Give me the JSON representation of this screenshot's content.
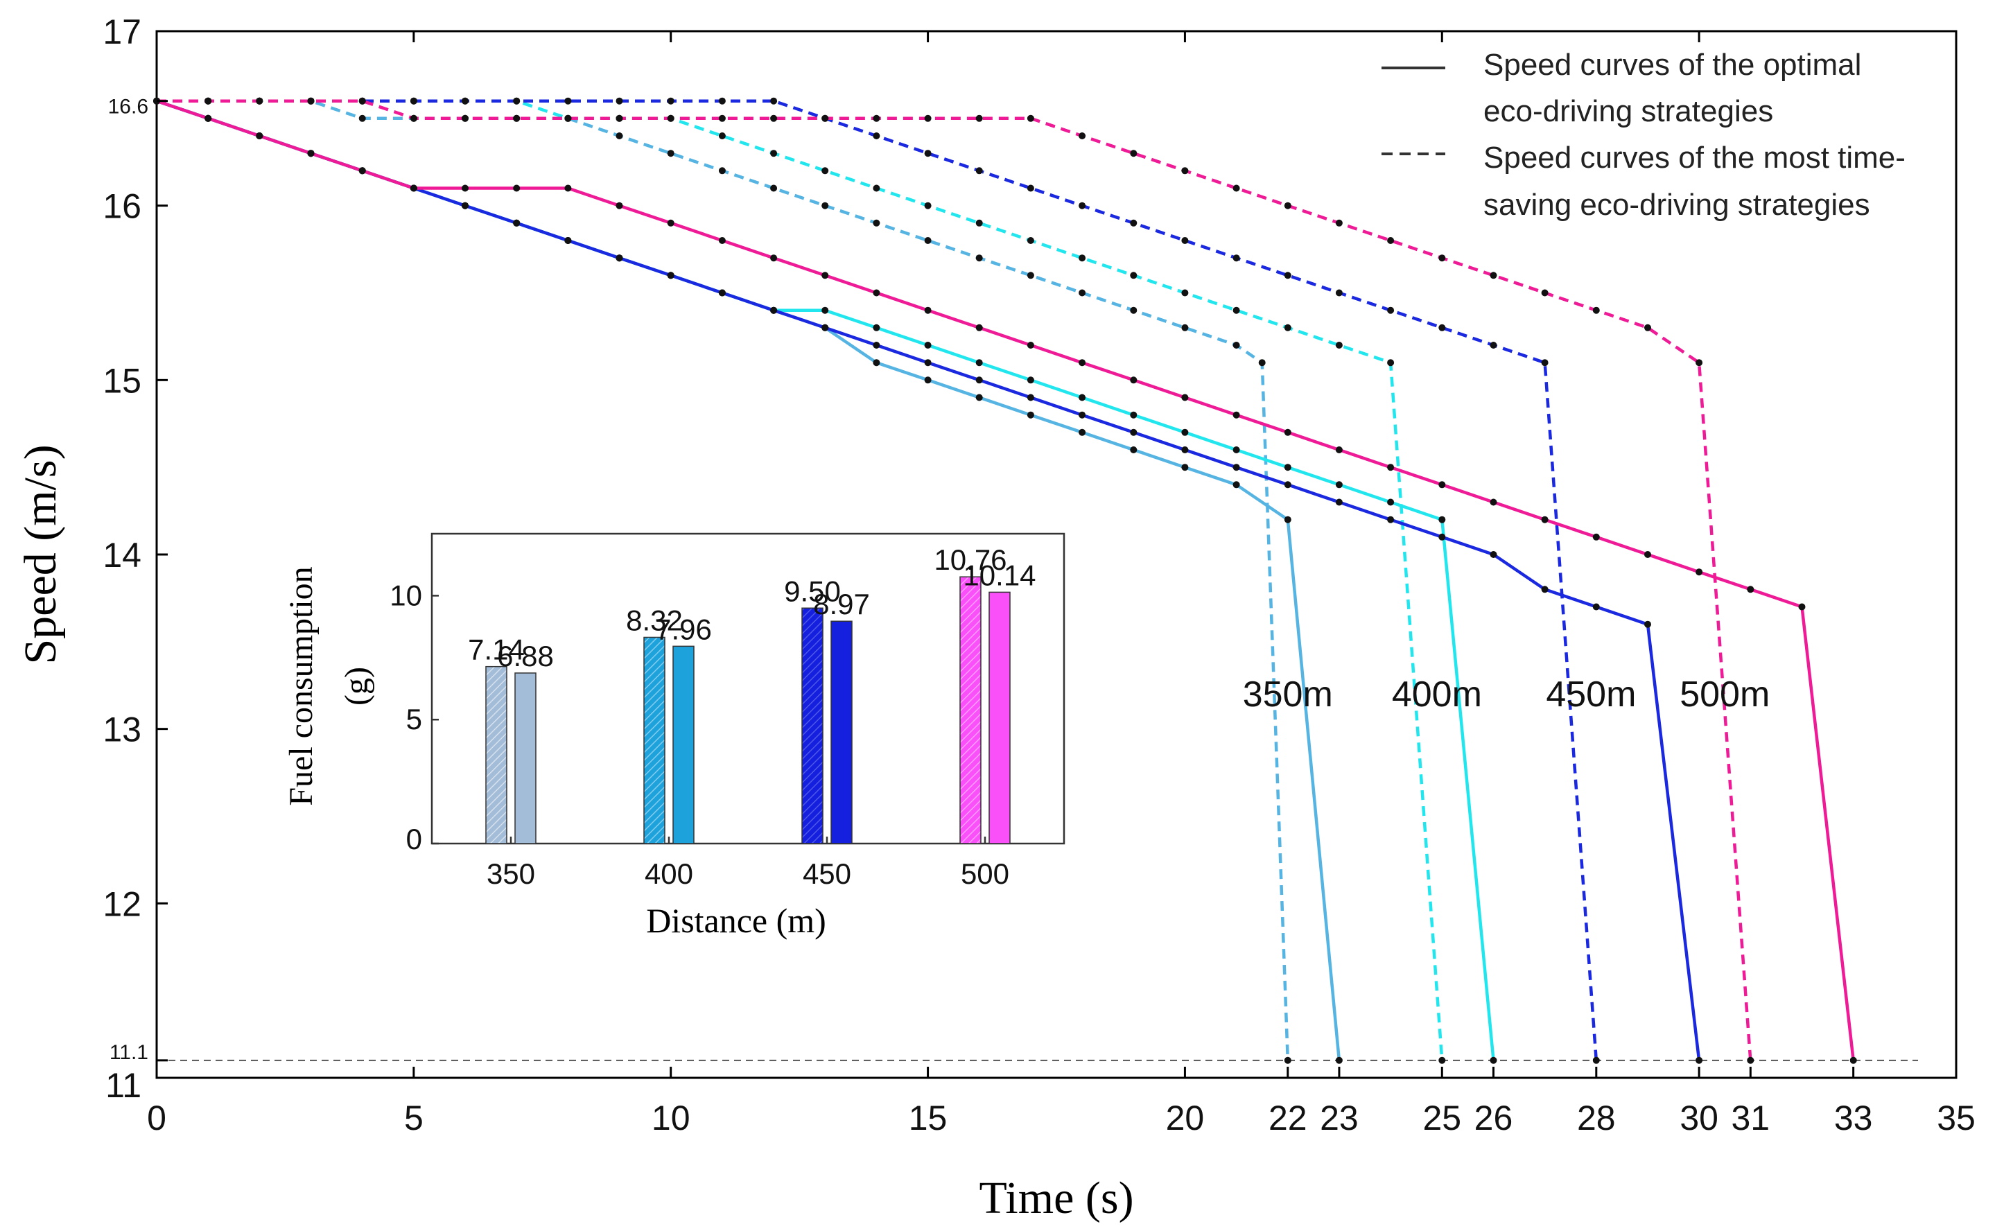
{
  "chart_data": {
    "main": {
      "type": "line",
      "xlabel": "Time (s)",
      "ylabel": "Speed (m/s)",
      "xlim": [
        0,
        35
      ],
      "ylim": [
        11,
        17
      ],
      "xticks": [
        {
          "v": 0,
          "label": "0"
        },
        {
          "v": 5,
          "label": "5"
        },
        {
          "v": 10,
          "label": "10"
        },
        {
          "v": 15,
          "label": "15"
        },
        {
          "v": 20,
          "label": "20"
        },
        {
          "v": 22,
          "label": "22"
        },
        {
          "v": 23,
          "label": "23"
        },
        {
          "v": 25,
          "label": "25"
        },
        {
          "v": 26,
          "label": "26"
        },
        {
          "v": 28,
          "label": "28"
        },
        {
          "v": 30,
          "label": "30"
        },
        {
          "v": 31,
          "label": "31"
        },
        {
          "v": 33,
          "label": "33"
        },
        {
          "v": 35,
          "label": "35"
        }
      ],
      "yticks": [
        {
          "v": 11,
          "label": "11"
        },
        {
          "v": 11.1,
          "label": "11.1"
        },
        {
          "v": 12,
          "label": "12"
        },
        {
          "v": 13,
          "label": "13"
        },
        {
          "v": 14,
          "label": "14"
        },
        {
          "v": 15,
          "label": "15"
        },
        {
          "v": 16,
          "label": "16"
        },
        {
          "v": 16.6,
          "label": "16.6"
        },
        {
          "v": 17,
          "label": "17"
        }
      ],
      "reference_line": {
        "y": 11.1,
        "style": "dashed",
        "color": "#555555"
      },
      "legend": {
        "position": "top-right",
        "entries": [
          {
            "style": "solid",
            "lines": [
              "Speed curves of the optimal",
              "eco-driving strategies"
            ]
          },
          {
            "style": "dashed",
            "lines": [
              "Speed curves of the most time-",
              "saving  eco-driving strategies"
            ]
          }
        ]
      },
      "distance_labels": [
        {
          "text": "350m",
          "x": 22.0,
          "y": 13.13
        },
        {
          "text": "400m",
          "x": 24.9,
          "y": 13.13
        },
        {
          "text": "450m",
          "x": 27.9,
          "y": 13.13
        },
        {
          "text": "500m",
          "x": 30.5,
          "y": 13.13
        }
      ],
      "series": [
        {
          "name": "350m optimal",
          "style": "solid",
          "color": "#56b4e3",
          "points": [
            [
              0,
              16.6
            ],
            [
              1,
              16.5
            ],
            [
              2,
              16.4
            ],
            [
              3,
              16.3
            ],
            [
              4,
              16.2
            ],
            [
              5,
              16.1
            ],
            [
              6,
              16.0
            ],
            [
              7,
              15.9
            ],
            [
              8,
              15.8
            ],
            [
              9,
              15.7
            ],
            [
              10,
              15.6
            ],
            [
              11,
              15.5
            ],
            [
              12,
              15.4
            ],
            [
              13,
              15.3
            ],
            [
              14,
              15.1
            ],
            [
              15,
              15.0
            ],
            [
              16,
              14.9
            ],
            [
              17,
              14.8
            ],
            [
              18,
              14.7
            ],
            [
              19,
              14.6
            ],
            [
              20,
              14.5
            ],
            [
              21,
              14.4
            ],
            [
              22,
              14.2
            ],
            [
              23,
              11.1
            ]
          ]
        },
        {
          "name": "400m optimal",
          "style": "solid",
          "color": "#22e6ee",
          "points": [
            [
              0,
              16.6
            ],
            [
              1,
              16.5
            ],
            [
              2,
              16.4
            ],
            [
              3,
              16.3
            ],
            [
              4,
              16.2
            ],
            [
              5,
              16.1
            ],
            [
              6,
              16.0
            ],
            [
              7,
              15.9
            ],
            [
              8,
              15.8
            ],
            [
              9,
              15.7
            ],
            [
              10,
              15.6
            ],
            [
              11,
              15.5
            ],
            [
              12,
              15.4
            ],
            [
              13,
              15.4
            ],
            [
              14,
              15.3
            ],
            [
              15,
              15.2
            ],
            [
              16,
              15.1
            ],
            [
              17,
              15.0
            ],
            [
              18,
              14.9
            ],
            [
              19,
              14.8
            ],
            [
              20,
              14.7
            ],
            [
              21,
              14.6
            ],
            [
              22,
              14.5
            ],
            [
              23,
              14.4
            ],
            [
              24,
              14.3
            ],
            [
              25,
              14.2
            ],
            [
              26,
              11.1
            ]
          ]
        },
        {
          "name": "450m optimal",
          "style": "solid",
          "color": "#1a28e0",
          "points": [
            [
              0,
              16.6
            ],
            [
              1,
              16.5
            ],
            [
              2,
              16.4
            ],
            [
              3,
              16.3
            ],
            [
              4,
              16.2
            ],
            [
              5,
              16.1
            ],
            [
              6,
              16.0
            ],
            [
              7,
              15.9
            ],
            [
              8,
              15.8
            ],
            [
              9,
              15.7
            ],
            [
              10,
              15.6
            ],
            [
              11,
              15.5
            ],
            [
              12,
              15.4
            ],
            [
              13,
              15.3
            ],
            [
              14,
              15.2
            ],
            [
              15,
              15.1
            ],
            [
              16,
              15.0
            ],
            [
              17,
              14.9
            ],
            [
              18,
              14.8
            ],
            [
              19,
              14.7
            ],
            [
              20,
              14.6
            ],
            [
              21,
              14.5
            ],
            [
              22,
              14.4
            ],
            [
              23,
              14.3
            ],
            [
              24,
              14.2
            ],
            [
              25,
              14.1
            ],
            [
              26,
              14.0
            ],
            [
              27,
              13.8
            ],
            [
              28,
              13.7
            ],
            [
              29,
              13.6
            ],
            [
              30,
              11.1
            ]
          ]
        },
        {
          "name": "500m optimal",
          "style": "solid",
          "color": "#ee1a96",
          "points": [
            [
              0,
              16.6
            ],
            [
              1,
              16.5
            ],
            [
              2,
              16.4
            ],
            [
              3,
              16.3
            ],
            [
              4,
              16.2
            ],
            [
              5,
              16.1
            ],
            [
              6,
              16.1
            ],
            [
              7,
              16.1
            ],
            [
              8,
              16.1
            ],
            [
              9,
              16.0
            ],
            [
              10,
              15.9
            ],
            [
              11,
              15.8
            ],
            [
              12,
              15.7
            ],
            [
              13,
              15.6
            ],
            [
              14,
              15.5
            ],
            [
              15,
              15.4
            ],
            [
              16,
              15.3
            ],
            [
              17,
              15.2
            ],
            [
              18,
              15.1
            ],
            [
              19,
              15.0
            ],
            [
              20,
              14.9
            ],
            [
              21,
              14.8
            ],
            [
              22,
              14.7
            ],
            [
              23,
              14.6
            ],
            [
              24,
              14.5
            ],
            [
              25,
              14.4
            ],
            [
              26,
              14.3
            ],
            [
              27,
              14.2
            ],
            [
              28,
              14.1
            ],
            [
              29,
              14.0
            ],
            [
              30,
              13.9
            ],
            [
              31,
              13.8
            ],
            [
              32,
              13.7
            ],
            [
              33,
              11.1
            ]
          ]
        },
        {
          "name": "350m most time-saving",
          "style": "dashed",
          "color": "#56b4e3",
          "points": [
            [
              0,
              16.6
            ],
            [
              1,
              16.6
            ],
            [
              2,
              16.6
            ],
            [
              3,
              16.6
            ],
            [
              4,
              16.5
            ],
            [
              5,
              16.5
            ],
            [
              6,
              16.5
            ],
            [
              7,
              16.5
            ],
            [
              8,
              16.5
            ],
            [
              9,
              16.4
            ],
            [
              10,
              16.3
            ],
            [
              11,
              16.2
            ],
            [
              12,
              16.1
            ],
            [
              13,
              16.0
            ],
            [
              14,
              15.9
            ],
            [
              15,
              15.8
            ],
            [
              16,
              15.7
            ],
            [
              17,
              15.6
            ],
            [
              18,
              15.5
            ],
            [
              19,
              15.4
            ],
            [
              20,
              15.3
            ],
            [
              21,
              15.2
            ],
            [
              21.5,
              15.1
            ],
            [
              22,
              11.1
            ]
          ]
        },
        {
          "name": "400m most time-saving",
          "style": "dashed",
          "color": "#22e6ee",
          "points": [
            [
              0,
              16.6
            ],
            [
              1,
              16.6
            ],
            [
              2,
              16.6
            ],
            [
              3,
              16.6
            ],
            [
              4,
              16.6
            ],
            [
              5,
              16.6
            ],
            [
              6,
              16.6
            ],
            [
              7,
              16.6
            ],
            [
              8,
              16.5
            ],
            [
              9,
              16.5
            ],
            [
              10,
              16.5
            ],
            [
              11,
              16.4
            ],
            [
              12,
              16.3
            ],
            [
              13,
              16.2
            ],
            [
              14,
              16.1
            ],
            [
              15,
              16.0
            ],
            [
              16,
              15.9
            ],
            [
              17,
              15.8
            ],
            [
              18,
              15.7
            ],
            [
              19,
              15.6
            ],
            [
              20,
              15.5
            ],
            [
              21,
              15.4
            ],
            [
              22,
              15.3
            ],
            [
              23,
              15.2
            ],
            [
              24,
              15.1
            ],
            [
              25,
              11.1
            ]
          ]
        },
        {
          "name": "450m most time-saving",
          "style": "dashed",
          "color": "#1a28e0",
          "points": [
            [
              0,
              16.6
            ],
            [
              1,
              16.6
            ],
            [
              2,
              16.6
            ],
            [
              3,
              16.6
            ],
            [
              4,
              16.6
            ],
            [
              5,
              16.6
            ],
            [
              6,
              16.6
            ],
            [
              7,
              16.6
            ],
            [
              8,
              16.6
            ],
            [
              9,
              16.6
            ],
            [
              10,
              16.6
            ],
            [
              11,
              16.6
            ],
            [
              12,
              16.6
            ],
            [
              13,
              16.5
            ],
            [
              14,
              16.4
            ],
            [
              15,
              16.3
            ],
            [
              16,
              16.2
            ],
            [
              17,
              16.1
            ],
            [
              18,
              16.0
            ],
            [
              19,
              15.9
            ],
            [
              20,
              15.8
            ],
            [
              21,
              15.7
            ],
            [
              22,
              15.6
            ],
            [
              23,
              15.5
            ],
            [
              24,
              15.4
            ],
            [
              25,
              15.3
            ],
            [
              26,
              15.2
            ],
            [
              27,
              15.1
            ],
            [
              28,
              11.1
            ]
          ]
        },
        {
          "name": "500m most time-saving",
          "style": "dashed",
          "color": "#ee1a96",
          "points": [
            [
              0,
              16.6
            ],
            [
              1,
              16.6
            ],
            [
              2,
              16.6
            ],
            [
              3,
              16.6
            ],
            [
              4,
              16.6
            ],
            [
              5,
              16.5
            ],
            [
              6,
              16.5
            ],
            [
              7,
              16.5
            ],
            [
              8,
              16.5
            ],
            [
              9,
              16.5
            ],
            [
              10,
              16.5
            ],
            [
              11,
              16.5
            ],
            [
              12,
              16.5
            ],
            [
              13,
              16.5
            ],
            [
              14,
              16.5
            ],
            [
              15,
              16.5
            ],
            [
              16,
              16.5
            ],
            [
              17,
              16.5
            ],
            [
              18,
              16.4
            ],
            [
              19,
              16.3
            ],
            [
              20,
              16.2
            ],
            [
              21,
              16.1
            ],
            [
              22,
              16.0
            ],
            [
              23,
              15.9
            ],
            [
              24,
              15.8
            ],
            [
              25,
              15.7
            ],
            [
              26,
              15.6
            ],
            [
              27,
              15.5
            ],
            [
              28,
              15.4
            ],
            [
              29,
              15.3
            ],
            [
              30,
              15.1
            ],
            [
              31,
              11.1
            ]
          ]
        }
      ]
    },
    "inset": {
      "type": "bar",
      "xlabel": "Distance (m)",
      "ylabel_lines": [
        "Fuel consumption",
        "(g)"
      ],
      "ylim": [
        0,
        12.5
      ],
      "yticks": [
        0,
        5,
        10
      ],
      "categories": [
        "350",
        "400",
        "450",
        "500"
      ],
      "series": [
        {
          "name": "most time-saving",
          "pattern": "hatched",
          "values": [
            7.14,
            8.32,
            9.5,
            10.76
          ],
          "labels": [
            "7.14",
            "8.32",
            "9.50",
            "10.76"
          ]
        },
        {
          "name": "optimal",
          "pattern": "solid",
          "values": [
            6.88,
            7.96,
            8.97,
            10.14
          ],
          "labels": [
            "6.88",
            "7.96",
            "8.97",
            "10.14"
          ]
        }
      ],
      "bar_colors": [
        "#a3bcd8",
        "#1ea2dc",
        "#1420de",
        "#fa50fa"
      ]
    }
  }
}
